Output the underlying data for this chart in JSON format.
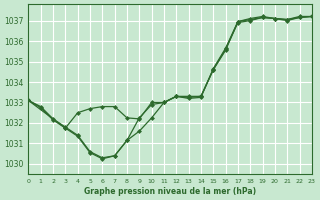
{
  "background_color": "#c8e8d0",
  "grid_color": "#ffffff",
  "line_color": "#2d6a2d",
  "xlabel": "Graphe pression niveau de la mer (hPa)",
  "xlim": [
    0,
    23
  ],
  "ylim": [
    1029.5,
    1037.8
  ],
  "yticks": [
    1030,
    1031,
    1032,
    1033,
    1034,
    1035,
    1036,
    1037
  ],
  "xticks": [
    0,
    1,
    2,
    3,
    4,
    5,
    6,
    7,
    8,
    9,
    10,
    11,
    12,
    13,
    14,
    15,
    16,
    17,
    18,
    19,
    20,
    21,
    22,
    23
  ],
  "series1_x": [
    0,
    1,
    2,
    3,
    4,
    5,
    6,
    7,
    8,
    9,
    10,
    11,
    12,
    13,
    14,
    15,
    16,
    17,
    18,
    19,
    20,
    21,
    22,
    23
  ],
  "series1_y": [
    1033.1,
    1032.8,
    1032.2,
    1031.8,
    1031.4,
    1030.6,
    1030.3,
    1030.4,
    1031.15,
    1032.25,
    1032.9,
    1033.0,
    1033.3,
    1033.3,
    1033.3,
    1034.6,
    1035.6,
    1036.9,
    1037.0,
    1037.15,
    1037.1,
    1037.05,
    1037.15,
    1037.2
  ],
  "series2_x": [
    0,
    1,
    2,
    3,
    4,
    5,
    6,
    7,
    8,
    9,
    10,
    11,
    12,
    13,
    14,
    15,
    16,
    17,
    18,
    19,
    20,
    21,
    22,
    23
  ],
  "series2_y": [
    1033.1,
    1032.75,
    1032.15,
    1031.75,
    1032.5,
    1032.7,
    1032.8,
    1032.8,
    1032.25,
    1032.2,
    1033.0,
    1033.0,
    1033.3,
    1033.2,
    1033.25,
    1034.65,
    1035.65,
    1036.95,
    1037.1,
    1037.2,
    1037.1,
    1037.05,
    1037.2,
    1037.2
  ],
  "series3_x": [
    0,
    3,
    4,
    5,
    6,
    7,
    8,
    9,
    10,
    11,
    12,
    13,
    14,
    15,
    16,
    17,
    18,
    19,
    20,
    21,
    22,
    23
  ],
  "series3_y": [
    1033.1,
    1031.75,
    1031.35,
    1030.55,
    1030.25,
    1030.4,
    1031.15,
    1031.6,
    1032.25,
    1033.0,
    1033.3,
    1033.25,
    1033.3,
    1034.6,
    1035.55,
    1036.95,
    1037.05,
    1037.15,
    1037.1,
    1037.0,
    1037.15,
    1037.2
  ]
}
